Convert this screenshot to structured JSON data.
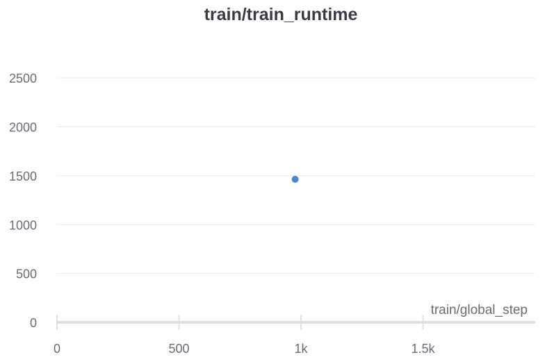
{
  "chart_data": {
    "type": "scatter",
    "title": "train/train_runtime",
    "xlabel": "train/global_step",
    "ylabel": "",
    "xlim": [
      0,
      1960
    ],
    "ylim": [
      0,
      2700
    ],
    "x_ticks": [
      {
        "value": 0,
        "label": "0"
      },
      {
        "value": 500,
        "label": "500"
      },
      {
        "value": 1000,
        "label": "1k"
      },
      {
        "value": 1500,
        "label": "1.5k"
      }
    ],
    "y_ticks": [
      {
        "value": 0,
        "label": "0"
      },
      {
        "value": 500,
        "label": "500"
      },
      {
        "value": 1000,
        "label": "1000"
      },
      {
        "value": 1500,
        "label": "1500"
      },
      {
        "value": 2000,
        "label": "2000"
      },
      {
        "value": 2500,
        "label": "2500"
      }
    ],
    "grid": true,
    "series": [
      {
        "color": "#4a86d0",
        "points": [
          {
            "x": 976,
            "y": 1463
          }
        ]
      }
    ]
  }
}
